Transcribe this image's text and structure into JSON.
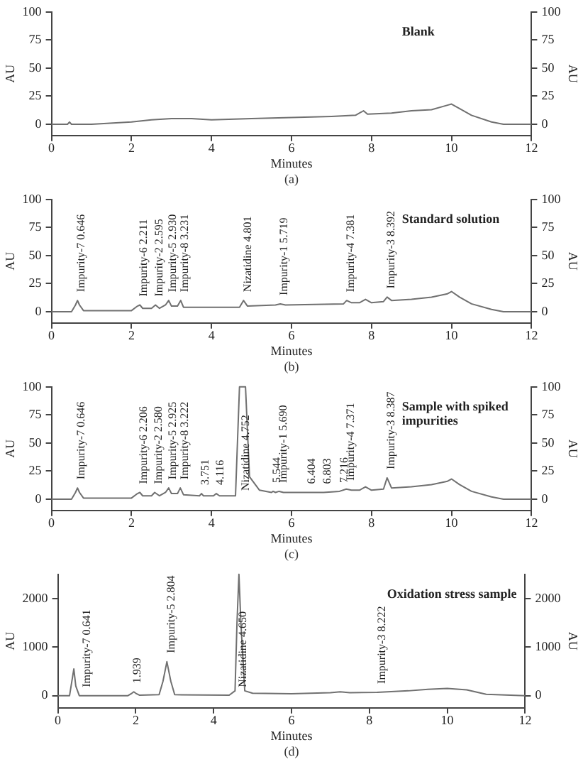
{
  "chart_data": [
    {
      "type": "line",
      "title": "Blank",
      "xlabel": "Minutes",
      "ylabel": "AU",
      "y2label": "AU",
      "xlim": [
        0,
        12
      ],
      "xticks": [
        0,
        2,
        4,
        6,
        8,
        10,
        12
      ],
      "ylim": [
        -10,
        100
      ],
      "yticks": [
        0,
        25,
        50,
        75,
        100
      ],
      "y2lim": [
        -10,
        100
      ],
      "y2ticks": [
        0,
        25,
        50,
        75,
        100
      ],
      "grid": false,
      "legend": false,
      "marker": "none",
      "line_style": "solid",
      "series": [
        {
          "color": "#707070",
          "x": [
            0,
            0.4,
            0.45,
            0.5,
            1,
            2,
            2.5,
            3,
            3.5,
            4,
            5,
            6,
            7,
            7.6,
            7.8,
            7.9,
            8.5,
            9,
            9.5,
            9.9,
            10,
            10.2,
            10.5,
            11,
            11.3,
            12
          ],
          "values": [
            0,
            0,
            2,
            0,
            0,
            2,
            4,
            5,
            5,
            4,
            5,
            6,
            7,
            8,
            12,
            9,
            10,
            12,
            13,
            17,
            18,
            14,
            8,
            2,
            0,
            0
          ]
        }
      ],
      "annotations": [
        "(a)"
      ]
    },
    {
      "type": "line",
      "title": "Standard solution",
      "xlabel": "Minutes",
      "ylabel": "AU",
      "y2label": "AU",
      "xlim": [
        0,
        12
      ],
      "xticks": [
        0,
        2,
        4,
        6,
        8,
        10,
        12
      ],
      "ylim": [
        -10,
        100
      ],
      "yticks": [
        0,
        25,
        50,
        75,
        100
      ],
      "y2lim": [
        -10,
        100
      ],
      "y2ticks": [
        0,
        25,
        50,
        75,
        100
      ],
      "grid": false,
      "legend": false,
      "marker": "none",
      "line_style": "solid",
      "series": [
        {
          "color": "#707070",
          "x": [
            0,
            0.5,
            0.6,
            0.65,
            0.7,
            0.8,
            2,
            2.15,
            2.21,
            2.28,
            2.5,
            2.6,
            2.7,
            2.85,
            2.93,
            3.0,
            3.15,
            3.23,
            3.3,
            4.7,
            4.8,
            4.9,
            5.6,
            5.72,
            5.85,
            7.3,
            7.38,
            7.5,
            7.7,
            7.85,
            8.0,
            8.3,
            8.39,
            8.5,
            9,
            9.5,
            9.9,
            10,
            10.2,
            10.5,
            11,
            11.3,
            12
          ],
          "values": [
            0,
            0,
            6,
            10,
            6,
            1,
            1,
            5,
            6,
            3,
            3,
            6,
            3,
            6,
            10,
            5,
            5,
            10,
            4,
            4,
            10,
            5,
            6,
            7,
            6,
            7,
            10,
            8,
            8,
            11,
            8,
            9,
            13,
            10,
            11,
            13,
            16,
            18,
            13,
            7,
            2,
            0,
            0
          ]
        }
      ],
      "annotations": [
        {
          "text": "Impurity-7 0.646",
          "x": 0.646,
          "y": 10
        },
        {
          "text": "Impurity-6 2.211",
          "x": 2.211,
          "y": 6
        },
        {
          "text": "Impurity-2 2.595",
          "x": 2.595,
          "y": 6
        },
        {
          "text": "Impurity-5 2.930",
          "x": 2.93,
          "y": 10
        },
        {
          "text": "Impurity-8 3.231",
          "x": 3.231,
          "y": 10
        },
        {
          "text": "Nizatidine 4.801",
          "x": 4.801,
          "y": 10
        },
        {
          "text": "Impurity-1 5.719",
          "x": 5.719,
          "y": 7
        },
        {
          "text": "Impurity-4 7.381",
          "x": 7.381,
          "y": 10
        },
        {
          "text": "Impurity-3 8.392",
          "x": 8.392,
          "y": 13
        },
        "(b)"
      ]
    },
    {
      "type": "line",
      "title": "Sample with spiked impurities",
      "xlabel": "Minutes",
      "ylabel": "AU",
      "y2label": "AU",
      "xlim": [
        0,
        12
      ],
      "xticks": [
        0,
        2,
        4,
        6,
        8,
        10,
        12
      ],
      "ylim": [
        -10,
        100
      ],
      "yticks": [
        0,
        25,
        50,
        75,
        100
      ],
      "y2lim": [
        -10,
        100
      ],
      "y2ticks": [
        0,
        25,
        50,
        75,
        100
      ],
      "grid": false,
      "legend": false,
      "marker": "none",
      "line_style": "solid",
      "series": [
        {
          "color": "#707070",
          "x": [
            0,
            0.5,
            0.6,
            0.65,
            0.7,
            0.8,
            2,
            2.15,
            2.21,
            2.28,
            2.5,
            2.58,
            2.7,
            2.85,
            2.93,
            3.0,
            3.15,
            3.22,
            3.3,
            3.7,
            3.75,
            3.8,
            4.05,
            4.12,
            4.2,
            4.6,
            4.7,
            4.85,
            4.95,
            5.2,
            5.5,
            5.54,
            5.6,
            5.69,
            5.8,
            6.4,
            6.8,
            7.2,
            7.37,
            7.5,
            7.7,
            7.85,
            8.0,
            8.3,
            8.39,
            8.5,
            9,
            9.5,
            9.9,
            10,
            10.2,
            10.5,
            11,
            11.3,
            12
          ],
          "values": [
            0,
            0,
            6,
            10,
            6,
            1,
            1,
            5,
            6,
            3,
            3,
            6,
            3,
            6,
            10,
            5,
            5,
            10,
            4,
            3,
            5,
            3,
            3,
            5,
            3,
            3,
            100,
            100,
            20,
            8,
            6,
            7,
            6,
            7,
            6,
            6,
            6,
            7,
            9,
            8,
            8,
            11,
            8,
            9,
            19,
            10,
            11,
            13,
            16,
            18,
            13,
            7,
            2,
            0,
            0
          ]
        }
      ],
      "annotations": [
        {
          "text": "Impurity-7 0.646",
          "x": 0.646,
          "y": 10
        },
        {
          "text": "Impurity-6 2.206",
          "x": 2.206,
          "y": 6
        },
        {
          "text": "Impurity-2 2.580",
          "x": 2.58,
          "y": 6
        },
        {
          "text": "Impurity-5 2.925",
          "x": 2.925,
          "y": 10
        },
        {
          "text": "Impurity-8 3.222",
          "x": 3.222,
          "y": 10
        },
        {
          "text": "3.751",
          "x": 3.751,
          "y": 5
        },
        {
          "text": "4.116",
          "x": 4.116,
          "y": 5
        },
        {
          "text": "Nizatidine 4.752",
          "x": 4.752,
          "y": 0
        },
        {
          "text": "5.544",
          "x": 5.544,
          "y": 7
        },
        {
          "text": "Impurity-1 5.690",
          "x": 5.69,
          "y": 7
        },
        {
          "text": "6.404",
          "x": 6.404,
          "y": 6
        },
        {
          "text": "6.803",
          "x": 6.803,
          "y": 6
        },
        {
          "text": "7.216",
          "x": 7.216,
          "y": 7
        },
        {
          "text": "Impurity-4 7.371",
          "x": 7.371,
          "y": 9
        },
        {
          "text": "Impurity-3 8.387",
          "x": 8.387,
          "y": 19
        },
        "(c)"
      ]
    },
    {
      "type": "line",
      "title": "Oxidation stress sample",
      "xlabel": "Minutes",
      "ylabel": "AU",
      "y2label": "AU",
      "xlim": [
        0,
        12
      ],
      "xticks": [
        0,
        2,
        4,
        6,
        8,
        10,
        12
      ],
      "ylim": [
        -250,
        2500
      ],
      "yticks": [
        0,
        1000,
        2000
      ],
      "y2lim": [
        -250,
        2500
      ],
      "y2ticks": [
        0,
        1000,
        2000
      ],
      "grid": false,
      "legend": false,
      "marker": "none",
      "line_style": "solid",
      "series": [
        {
          "color": "#707070",
          "x": [
            0,
            0.3,
            0.36,
            0.41,
            0.46,
            0.55,
            1.8,
            1.9,
            1.95,
            2.0,
            2.1,
            2.6,
            2.7,
            2.8,
            2.9,
            3.0,
            4.4,
            4.55,
            4.6,
            4.65,
            4.7,
            4.8,
            5.0,
            6,
            7,
            7.25,
            7.5,
            8.2,
            9,
            9.5,
            10,
            10.5,
            11,
            12
          ],
          "values": [
            0,
            0,
            300,
            550,
            200,
            0,
            0,
            50,
            80,
            50,
            10,
            20,
            300,
            700,
            300,
            20,
            10,
            100,
            1500,
            2500,
            1500,
            100,
            50,
            40,
            60,
            80,
            60,
            70,
            100,
            130,
            150,
            120,
            30,
            0
          ]
        }
      ],
      "annotations": [
        {
          "text": "Impurity-7 0.641",
          "x": 0.641,
          "y": 0
        },
        {
          "text": "1.939",
          "x": 1.939,
          "y": 80
        },
        {
          "text": "Impurity-5 2.804",
          "x": 2.804,
          "y": 700
        },
        {
          "text": "Nizatidine 4.650",
          "x": 4.65,
          "y": 0
        },
        {
          "text": "Impurity-3 8.222",
          "x": 8.222,
          "y": 70
        },
        "(d)"
      ]
    }
  ]
}
